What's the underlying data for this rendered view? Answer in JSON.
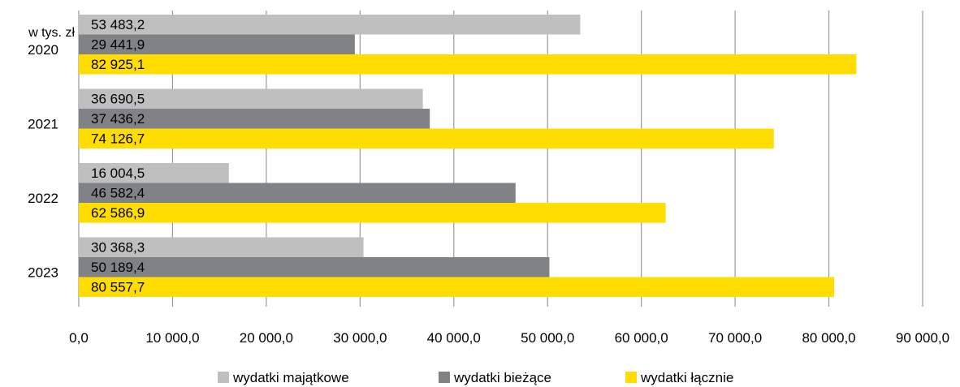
{
  "chart_data": {
    "type": "bar",
    "orientation": "horizontal",
    "unit_label": "w tys. zł",
    "categories": [
      "2020",
      "2021",
      "2022",
      "2023"
    ],
    "series": [
      {
        "name": "wydatki majątkowe",
        "color": "#bfbfbf",
        "values": [
          53483.2,
          36690.5,
          16004.5,
          30368.3
        ],
        "labels": [
          "53 483,2",
          "36 690,5",
          "16 004,5",
          "30 368,3"
        ]
      },
      {
        "name": "wydatki bieżące",
        "color": "#808285",
        "values": [
          29441.9,
          37436.2,
          46582.4,
          50189.4
        ],
        "labels": [
          "29 441,9",
          "37 436,2",
          "46 582,4",
          "50 189,4"
        ]
      },
      {
        "name": "wydatki łącznie",
        "color": "#ffdd00",
        "values": [
          82925.1,
          74126.7,
          62586.9,
          80557.7
        ],
        "labels": [
          "82 925,1",
          "74 126,7",
          "62 586,9",
          "80 557,7"
        ]
      }
    ],
    "xlim": [
      0,
      90000
    ],
    "xticks": [
      0,
      10000,
      20000,
      30000,
      40000,
      50000,
      60000,
      70000,
      80000,
      90000
    ],
    "xtick_labels": [
      "0,0",
      "10 000,0",
      "20 000,0",
      "30 000,0",
      "40 000,0",
      "50 000,0",
      "60 000,0",
      "70 000,0",
      "80 000,0",
      "90 000,0"
    ],
    "grid": "vertical",
    "legend_position": "bottom"
  }
}
